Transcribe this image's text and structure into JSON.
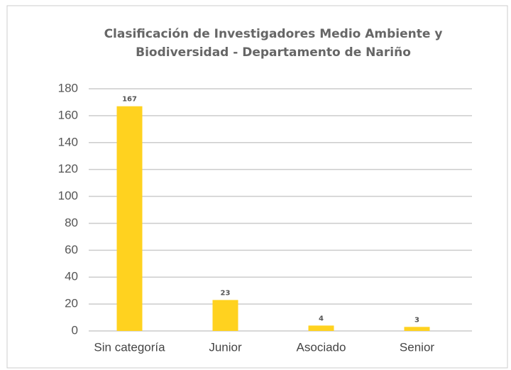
{
  "chart_data": {
    "type": "bar",
    "title": "Clasificación de Investigadores Medio Ambiente y Biodiversidad - Departamento de Nariño",
    "categories": [
      "Sin categoría",
      "Junior",
      "Asociado",
      "Senior"
    ],
    "values": [
      167,
      23,
      4,
      3
    ],
    "color": "#ffd21f",
    "ylim": [
      0,
      180
    ],
    "yticks": [
      0,
      20,
      40,
      60,
      80,
      100,
      120,
      140,
      160,
      180
    ],
    "grid": true
  }
}
